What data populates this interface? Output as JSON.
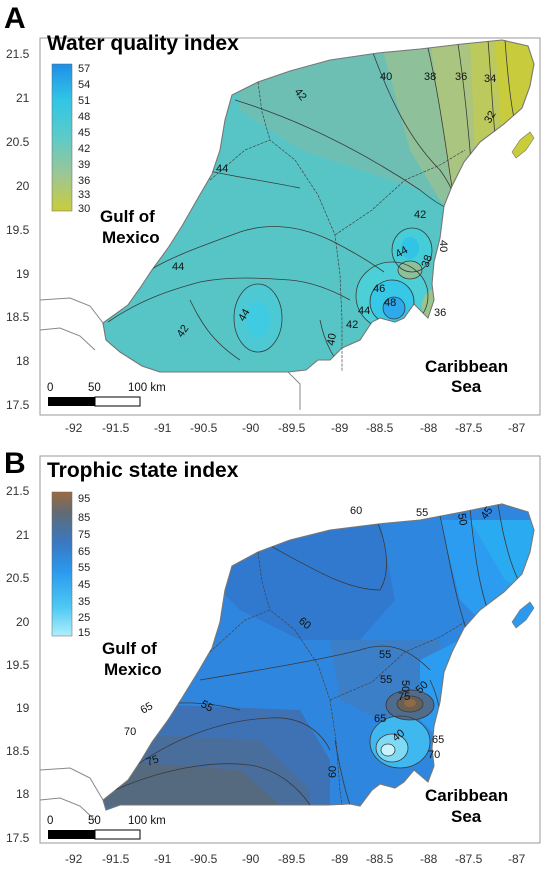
{
  "panels": [
    {
      "letter": "A",
      "title": "Water quality index",
      "legend_values": [
        "57",
        "54",
        "51",
        "48",
        "45",
        "42",
        "39",
        "36",
        "33",
        "30"
      ],
      "legend_colors": [
        "#1f8fe8",
        "#26a6ec",
        "#2cbfe9",
        "#35cfe0",
        "#4ccdcf",
        "#6cc4bd",
        "#8cc4a4",
        "#a8c88a",
        "#bccb63",
        "#c9cd3a"
      ],
      "contour_labels": [
        "42",
        "40",
        "38",
        "36",
        "34",
        "32",
        "44",
        "42",
        "44",
        "40",
        "38",
        "44",
        "46",
        "48",
        "44",
        "42",
        "40",
        "44",
        "42",
        "36"
      ],
      "places": {
        "gulf_1": "Gulf of",
        "gulf_2": "Mexico",
        "carib_1": "Caribbean",
        "carib_2": "Sea"
      },
      "scale": {
        "s0": "0",
        "s1": "50",
        "s2": "100 km"
      },
      "y_ticks": [
        "21.5",
        "21",
        "20.5",
        "20",
        "19.5",
        "19",
        "18.5",
        "18",
        "17.5"
      ],
      "x_ticks": [
        "-92",
        "-91.5",
        "-91",
        "-90.5",
        "-90",
        "-89.5",
        "-89",
        "-88.5",
        "-88",
        "-87.5",
        "-87"
      ]
    },
    {
      "letter": "B",
      "title": "Trophic state index",
      "legend_values": [
        "95",
        "85",
        "75",
        "65",
        "55",
        "45",
        "35",
        "25",
        "15"
      ],
      "legend_colors": [
        "#9a6a3e",
        "#5f6b78",
        "#4b6f96",
        "#3a78c2",
        "#2d85e2",
        "#2b99ee",
        "#2fb3f1",
        "#55d0f5",
        "#a8ecfb"
      ],
      "contour_labels": [
        "60",
        "55",
        "50",
        "45",
        "60",
        "55",
        "50",
        "55",
        "55",
        "65",
        "70",
        "75",
        "75",
        "65",
        "40",
        "65",
        "70",
        "60",
        "50"
      ],
      "places": {
        "gulf_1": "Gulf of",
        "gulf_2": "Mexico",
        "carib_1": "Caribbean",
        "carib_2": "Sea"
      },
      "scale": {
        "s0": "0",
        "s1": "50",
        "s2": "100 km"
      },
      "y_ticks": [
        "21.5",
        "21",
        "20.5",
        "20",
        "19.5",
        "19",
        "18.5",
        "18",
        "17.5"
      ],
      "x_ticks": [
        "-92",
        "-91.5",
        "-91",
        "-90.5",
        "-90",
        "-89.5",
        "-89",
        "-88.5",
        "-88",
        "-87.5",
        "-87"
      ]
    }
  ]
}
